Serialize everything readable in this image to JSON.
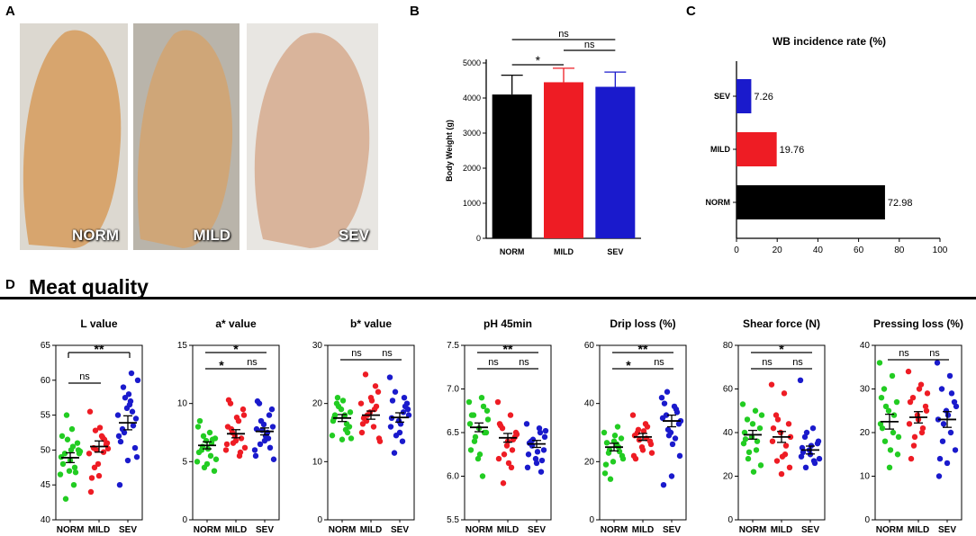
{
  "panels": {
    "a": "A",
    "b": "B",
    "c": "C",
    "d": "D"
  },
  "photos": [
    {
      "label": "NORM",
      "flesh": "#d7a56e",
      "bg": "#dcd8d0"
    },
    {
      "label": "MILD",
      "flesh": "#cfa678",
      "bg": "#b9b4aa"
    },
    {
      "label": "SEV",
      "flesh": "#d9b49b",
      "bg": "#e8e6e2"
    }
  ],
  "meat_quality_title": "Meat quality",
  "colors": {
    "norm": "#22cc22",
    "mild": "#ee1c24",
    "sev": "#1a1acc",
    "black": "#000000"
  },
  "chart_data": [
    {
      "id": "body-weight",
      "type": "bar",
      "ylabel": "Body Weight (g)",
      "categories": [
        "NORM",
        "MILD",
        "SEV"
      ],
      "values": [
        4100,
        4450,
        4320
      ],
      "errors": [
        550,
        400,
        420
      ],
      "ylim": [
        0,
        5000
      ],
      "yticks": [
        0,
        1000,
        2000,
        3000,
        4000,
        5000
      ],
      "significance": [
        {
          "from": 0,
          "to": 1,
          "label": "*"
        },
        {
          "from": 1,
          "to": 2,
          "label": "ns"
        },
        {
          "from": 0,
          "to": 2,
          "label": "ns"
        }
      ]
    },
    {
      "id": "wb-incidence",
      "type": "bar",
      "orientation": "horizontal",
      "title": "WB incidence rate (%)",
      "categories": [
        "SEV",
        "MILD",
        "NORM"
      ],
      "values": [
        7.26,
        19.76,
        72.98
      ],
      "value_labels": [
        "7.26",
        "19.76",
        "72.98"
      ],
      "xlim": [
        0,
        100
      ],
      "xticks": [
        0,
        20,
        40,
        60,
        80,
        100
      ]
    },
    {
      "id": "l-value",
      "type": "scatter",
      "title": "L value",
      "categories": [
        "NORM",
        "MILD",
        "SEV"
      ],
      "ylim": [
        40,
        65
      ],
      "yticks": [
        40,
        45,
        50,
        55,
        60,
        65
      ],
      "means": [
        48.9,
        50.5,
        53.9
      ],
      "sems": [
        0.7,
        0.8,
        1.0
      ],
      "points": [
        [
          46.5,
          50.5,
          49.5,
          51,
          47,
          49,
          45,
          43,
          50,
          48.5,
          52,
          47.5,
          55,
          49.5,
          50,
          48,
          46.8,
          51.5,
          49.8,
          53
        ],
        [
          49.5,
          52,
          50.3,
          50.8,
          48,
          55.5,
          51.8,
          47.5,
          51,
          46.3,
          44,
          49.7,
          52.8,
          50.2,
          53.2,
          46,
          51.5,
          50
        ],
        [
          55,
          57,
          53,
          50.3,
          56,
          52,
          61,
          59,
          54.5,
          48.5,
          45,
          55.5,
          52.5,
          49,
          58,
          51.2,
          53.5,
          57.5,
          60,
          56.5
        ]
      ],
      "significance": [
        {
          "from": 0,
          "to": 1,
          "label": "ns"
        },
        {
          "from": 0,
          "to": 2,
          "label": "**"
        }
      ]
    },
    {
      "id": "a-value",
      "type": "scatter",
      "title": "a* value",
      "categories": [
        "NORM",
        "MILD",
        "SEV"
      ],
      "ylim": [
        0,
        15
      ],
      "yticks": [
        0,
        5,
        10,
        15
      ],
      "means": [
        6.4,
        7.4,
        7.6
      ],
      "sems": [
        0.3,
        0.35,
        0.3
      ],
      "points": [
        [
          5,
          7.5,
          6,
          4.2,
          6.8,
          8,
          5.5,
          6.3,
          7,
          4.8,
          5.8,
          6.6,
          7.2,
          5.2,
          6.1,
          8.5,
          6.9,
          4.5
        ],
        [
          6,
          8.5,
          10,
          9.5,
          7.2,
          6.5,
          5.5,
          7.8,
          9,
          6.8,
          8,
          5.8,
          7.5,
          6.2,
          8.8,
          10.3,
          7,
          6.6
        ],
        [
          6,
          7.5,
          10,
          9.5,
          8.2,
          5.5,
          7,
          6.5,
          8,
          6.8,
          7.8,
          9,
          8.5,
          5.2,
          7.2,
          10.2,
          6.2,
          7.7
        ]
      ],
      "significance": [
        {
          "from": 0,
          "to": 1,
          "label": "*"
        },
        {
          "from": 1,
          "to": 2,
          "label": "ns"
        },
        {
          "from": 0,
          "to": 2,
          "label": "*"
        }
      ]
    },
    {
      "id": "b-value",
      "type": "scatter",
      "title": "b* value",
      "categories": [
        "NORM",
        "MILD",
        "SEV"
      ],
      "ylim": [
        0,
        30
      ],
      "yticks": [
        0,
        10,
        20,
        30
      ],
      "means": [
        17.5,
        18.0,
        17.6
      ],
      "sems": [
        0.6,
        0.7,
        0.8
      ],
      "points": [
        [
          14.5,
          18,
          20,
          16,
          19,
          17,
          15.5,
          21,
          18.5,
          13.8,
          17.5,
          16.5,
          19.5,
          14,
          20.5,
          18,
          15
        ],
        [
          20,
          16,
          25,
          22,
          18.5,
          15,
          19,
          17,
          14,
          21,
          16.5,
          23,
          18,
          13.5,
          20.5,
          17.5,
          19.5
        ],
        [
          24.5,
          13.5,
          11.5,
          20,
          17,
          16,
          18.5,
          22,
          19,
          15,
          17.5,
          21,
          14.5,
          18,
          16.5,
          20.5,
          19.5
        ]
      ],
      "significance": [
        {
          "from": 0,
          "to": 1,
          "label": "ns"
        },
        {
          "from": 1,
          "to": 2,
          "label": "ns"
        }
      ]
    },
    {
      "id": "ph45",
      "type": "scatter",
      "title": "pH 45min",
      "categories": [
        "NORM",
        "MILD",
        "SEV"
      ],
      "ylim": [
        5.5,
        7.5
      ],
      "yticks": [
        5.5,
        6.0,
        6.5,
        7.0,
        7.5
      ],
      "means": [
        6.56,
        6.44,
        6.37
      ],
      "sems": [
        0.05,
        0.05,
        0.04
      ],
      "points": [
        [
          6.85,
          6.9,
          6.7,
          6.5,
          6.2,
          6.6,
          6.0,
          6.4,
          6.75,
          6.55,
          6.3,
          6.8,
          6.45,
          6.65,
          6.25,
          6.7,
          6.5
        ],
        [
          6.85,
          6.7,
          6.55,
          6.45,
          6.35,
          6.2,
          6.1,
          5.92,
          6.5,
          6.4,
          6.6,
          6.3,
          6.25,
          6.48,
          6.15,
          6.58,
          6.42
        ],
        [
          6.6,
          6.55,
          6.4,
          6.3,
          6.2,
          6.1,
          6.5,
          6.35,
          6.45,
          6.15,
          6.25,
          6.05,
          6.42,
          6.52,
          6.28,
          6.38,
          6.18
        ]
      ],
      "significance": [
        {
          "from": 0,
          "to": 1,
          "label": "ns"
        },
        {
          "from": 1,
          "to": 2,
          "label": "ns"
        },
        {
          "from": 0,
          "to": 2,
          "label": "**"
        }
      ]
    },
    {
      "id": "drip-loss",
      "type": "scatter",
      "title": "Drip loss (%)",
      "categories": [
        "NORM",
        "MILD",
        "SEV"
      ],
      "ylim": [
        0,
        60
      ],
      "yticks": [
        0,
        20,
        40,
        60
      ],
      "means": [
        25,
        28.5,
        34
      ],
      "sems": [
        1.3,
        1.2,
        2.0
      ],
      "points": [
        [
          30,
          26,
          23,
          28,
          20,
          16,
          32,
          24,
          22,
          27,
          19,
          25,
          14,
          21,
          29,
          26.5,
          23.5
        ],
        [
          36,
          33,
          30,
          27,
          25,
          22,
          28,
          31,
          26,
          24,
          29,
          32,
          27.5,
          23,
          30.5,
          21
        ],
        [
          42,
          39,
          36,
          33,
          30,
          35,
          28,
          44,
          22,
          15,
          12,
          38,
          31,
          34,
          26,
          40,
          37,
          29
        ]
      ],
      "significance": [
        {
          "from": 0,
          "to": 1,
          "label": "*"
        },
        {
          "from": 1,
          "to": 2,
          "label": "ns"
        },
        {
          "from": 0,
          "to": 2,
          "label": "**"
        }
      ]
    },
    {
      "id": "shear-force",
      "type": "scatter",
      "title": "Shear force (N)",
      "categories": [
        "NORM",
        "MILD",
        "SEV"
      ],
      "ylim": [
        0,
        80
      ],
      "yticks": [
        0,
        20,
        40,
        60,
        80
      ],
      "means": [
        39,
        38,
        32
      ],
      "sems": [
        2,
        2.5,
        1.8
      ],
      "points": [
        [
          53,
          50,
          46,
          42,
          38,
          35,
          32,
          28,
          25,
          44,
          40,
          36,
          31,
          48,
          22,
          37
        ],
        [
          62,
          58,
          48,
          44,
          40,
          36,
          30,
          27,
          24,
          21,
          42,
          34,
          46,
          38,
          29
        ],
        [
          64,
          42,
          38,
          35,
          32,
          29,
          27,
          24,
          36,
          30,
          33,
          26,
          40,
          28,
          34,
          31
        ]
      ],
      "significance": [
        {
          "from": 0,
          "to": 1,
          "label": "ns"
        },
        {
          "from": 1,
          "to": 2,
          "label": "ns"
        },
        {
          "from": 0,
          "to": 2,
          "label": "*"
        }
      ]
    },
    {
      "id": "pressing-loss",
      "type": "scatter",
      "title": "Pressing loss (%)",
      "categories": [
        "NORM",
        "MILD",
        "SEV"
      ],
      "ylim": [
        0,
        40
      ],
      "yticks": [
        0,
        10,
        20,
        30,
        40
      ],
      "means": [
        22.5,
        23.5,
        23
      ],
      "sems": [
        1.7,
        1.3,
        1.8
      ],
      "points": [
        [
          36,
          33,
          30,
          27,
          25,
          22,
          20,
          18,
          15,
          12,
          28,
          24,
          26,
          19,
          16,
          21
        ],
        [
          34,
          31,
          28,
          26,
          24,
          22,
          20,
          17,
          25,
          23,
          27,
          21,
          19,
          29,
          30,
          14
        ],
        [
          36,
          33,
          30,
          27,
          25,
          23,
          20,
          18,
          16,
          13,
          10,
          29,
          22,
          26,
          24,
          14
        ]
      ],
      "significance": [
        {
          "from": 0,
          "to": 1,
          "label": "ns"
        },
        {
          "from": 1,
          "to": 2,
          "label": "ns"
        }
      ]
    }
  ]
}
